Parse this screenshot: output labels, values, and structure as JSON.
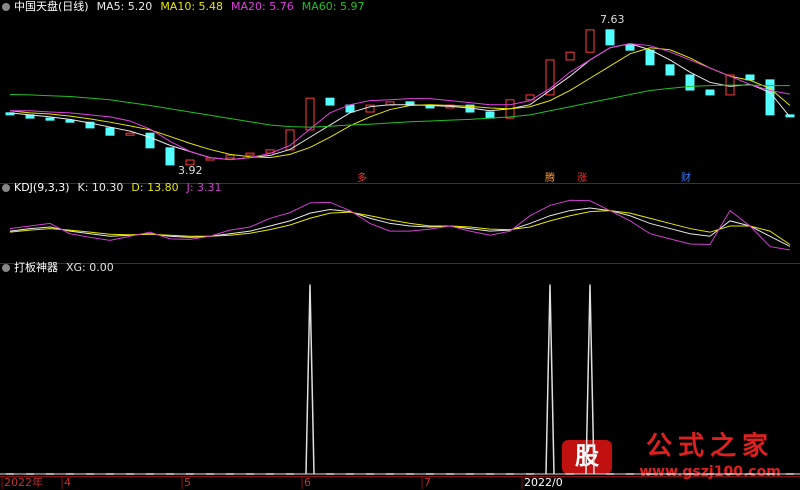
{
  "chart_data": [
    {
      "type": "candlestick",
      "title": "中国天盘(日线)",
      "ylim": [
        3.6,
        7.95
      ],
      "open": [
        5.3,
        5.25,
        5.17,
        5.12,
        5.07,
        4.93,
        4.75,
        4.8,
        4.44,
        4.02,
        4.14,
        4.19,
        4.26,
        4.31,
        4.39,
        4.88,
        5.66,
        5.49,
        5.32,
        5.49,
        5.57,
        5.49,
        5.42,
        5.49,
        5.32,
        5.17,
        5.62,
        5.74,
        6.6,
        6.79,
        7.34,
        6.97,
        6.84,
        6.48,
        6.23,
        5.86,
        5.74,
        6.23,
        6.11,
        5.25
      ],
      "close": [
        5.25,
        5.17,
        5.12,
        5.07,
        4.93,
        4.75,
        4.8,
        4.44,
        4.02,
        4.14,
        4.19,
        4.26,
        4.31,
        4.39,
        4.88,
        5.66,
        5.49,
        5.32,
        5.49,
        5.57,
        5.49,
        5.42,
        5.49,
        5.32,
        5.17,
        5.62,
        5.74,
        6.6,
        6.79,
        7.34,
        6.97,
        6.84,
        6.48,
        6.23,
        5.86,
        5.74,
        6.23,
        6.11,
        5.25,
        5.2
      ],
      "up_color": "#ff3c3c",
      "down_color": "#54ffff",
      "series": [
        {
          "name": "MA5: 5.20",
          "color": "#e8e8e8",
          "values": [
            5.3,
            5.25,
            5.2,
            5.14,
            5.05,
            4.95,
            4.85,
            4.7,
            4.5,
            4.35,
            4.2,
            4.15,
            4.2,
            4.25,
            4.4,
            4.7,
            5.0,
            5.3,
            5.45,
            5.5,
            5.5,
            5.48,
            5.46,
            5.42,
            5.35,
            5.4,
            5.5,
            5.85,
            6.2,
            6.6,
            6.9,
            7.0,
            6.85,
            6.6,
            6.3,
            6.05,
            5.95,
            6.0,
            5.8,
            5.2
          ]
        },
        {
          "name": "MA10: 5.48",
          "color": "#e6e600",
          "values": [
            5.35,
            5.3,
            5.27,
            5.22,
            5.15,
            5.07,
            4.98,
            4.88,
            4.72,
            4.55,
            4.4,
            4.28,
            4.22,
            4.2,
            4.28,
            4.45,
            4.7,
            4.98,
            5.2,
            5.38,
            5.48,
            5.5,
            5.48,
            5.46,
            5.42,
            5.4,
            5.45,
            5.6,
            5.85,
            6.15,
            6.45,
            6.75,
            6.9,
            6.85,
            6.65,
            6.4,
            6.2,
            6.1,
            5.9,
            5.48
          ]
        },
        {
          "name": "MA20: 5.76",
          "color": "#e040e0",
          "values": [
            5.35,
            5.35,
            5.32,
            5.3,
            5.25,
            5.2,
            5.1,
            4.9,
            4.6,
            4.35,
            4.2,
            4.15,
            4.2,
            4.3,
            4.5,
            4.9,
            5.3,
            5.5,
            5.6,
            5.62,
            5.65,
            5.65,
            5.6,
            5.55,
            5.5,
            5.5,
            5.6,
            5.9,
            6.3,
            6.6,
            6.9,
            7.0,
            6.95,
            6.8,
            6.6,
            6.4,
            6.2,
            6.0,
            5.85,
            5.76
          ]
        },
        {
          "name": "MA60: 5.97",
          "color": "#22c022",
          "values": [
            5.75,
            5.74,
            5.72,
            5.7,
            5.66,
            5.62,
            5.55,
            5.48,
            5.4,
            5.32,
            5.24,
            5.16,
            5.08,
            5.0,
            4.96,
            4.95,
            4.97,
            5.0,
            5.02,
            5.05,
            5.08,
            5.1,
            5.12,
            5.14,
            5.17,
            5.2,
            5.25,
            5.35,
            5.45,
            5.55,
            5.65,
            5.75,
            5.85,
            5.9,
            5.95,
            5.97,
            5.98,
            5.98,
            5.97,
            5.97
          ]
        }
      ],
      "annotations": [
        "7.63",
        "3.92"
      ],
      "signals": [
        {
          "text": "多",
          "color": "#ff3030"
        },
        {
          "text": "腾",
          "color": "#ff9a30"
        },
        {
          "text": "涨",
          "color": "#ff3030"
        },
        {
          "text": "财",
          "color": "#3a7aff"
        }
      ]
    },
    {
      "type": "line",
      "title": "KDJ(9,3,3)",
      "ylim": [
        -20,
        120
      ],
      "series": [
        {
          "name": "K: 10.30",
          "color": "#e8e8e8",
          "values": [
            40,
            45,
            48,
            40,
            35,
            30,
            32,
            35,
            30,
            28,
            30,
            35,
            40,
            50,
            60,
            75,
            82,
            78,
            65,
            55,
            50,
            48,
            50,
            45,
            40,
            42,
            55,
            70,
            80,
            85,
            80,
            70,
            55,
            45,
            35,
            30,
            60,
            50,
            30,
            10.3
          ]
        },
        {
          "name": "D: 13.80",
          "color": "#e6e600",
          "values": [
            38,
            42,
            45,
            42,
            38,
            34,
            33,
            34,
            32,
            30,
            30,
            32,
            36,
            43,
            52,
            65,
            75,
            77,
            70,
            62,
            55,
            50,
            50,
            48,
            44,
            43,
            48,
            60,
            70,
            78,
            80,
            75,
            65,
            55,
            45,
            38,
            50,
            50,
            40,
            13.8
          ]
        },
        {
          "name": "J: 3.31",
          "color": "#d040d0",
          "values": [
            45,
            50,
            55,
            35,
            28,
            22,
            30,
            38,
            25,
            24,
            30,
            42,
            48,
            65,
            76,
            95,
            96,
            80,
            55,
            40,
            40,
            44,
            50,
            40,
            32,
            40,
            70,
            90,
            100,
            99,
            80,
            60,
            35,
            25,
            15,
            14,
            80,
            50,
            10,
            3.31
          ]
        }
      ]
    },
    {
      "type": "spike",
      "title": "打板神器",
      "ylim": [
        0,
        1.05
      ],
      "series": [
        {
          "name": "XG: 0.00",
          "color": "#e0e0e0",
          "values": [
            0,
            0,
            0,
            0,
            0,
            0,
            0,
            0,
            0,
            0,
            0,
            0,
            0,
            0,
            0,
            1,
            0,
            0,
            0,
            0,
            0,
            0,
            0,
            0,
            0,
            0,
            0,
            1,
            0,
            1,
            0,
            0,
            0,
            0,
            0,
            0,
            0,
            0,
            0,
            0
          ]
        }
      ],
      "categories": [
        "2022年",
        null,
        null,
        "4",
        null,
        null,
        null,
        null,
        null,
        "5",
        null,
        null,
        null,
        null,
        null,
        "6",
        null,
        null,
        null,
        null,
        null,
        "7",
        null,
        null,
        null,
        null,
        "2022/0",
        null,
        null,
        null,
        null,
        null,
        null,
        null,
        null,
        null,
        null,
        null,
        null,
        null
      ]
    }
  ],
  "watermark": {
    "logo": "股",
    "name": "公式之家",
    "url": "www.gszj100.com"
  }
}
